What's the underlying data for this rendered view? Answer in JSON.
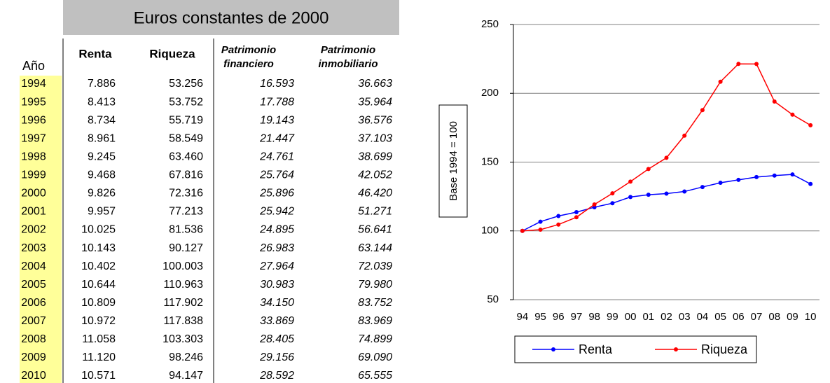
{
  "table": {
    "title": "Euros constantes de 2000",
    "columns": [
      "Año",
      "Renta",
      "Riqueza",
      [
        "Patrimonio",
        "financiero"
      ],
      [
        "Patrimonio",
        "inmobiliario"
      ]
    ],
    "rows": [
      [
        "1994",
        "7.886",
        "53.256",
        "16.593",
        "36.663"
      ],
      [
        "1995",
        "8.413",
        "53.752",
        "17.788",
        "35.964"
      ],
      [
        "1996",
        "8.734",
        "55.719",
        "19.143",
        "36.576"
      ],
      [
        "1997",
        "8.961",
        "58.549",
        "21.447",
        "37.103"
      ],
      [
        "1998",
        "9.245",
        "63.460",
        "24.761",
        "38.699"
      ],
      [
        "1999",
        "9.468",
        "67.816",
        "25.764",
        "42.052"
      ],
      [
        "2000",
        "9.826",
        "72.316",
        "25.896",
        "46.420"
      ],
      [
        "2001",
        "9.957",
        "77.213",
        "25.942",
        "51.271"
      ],
      [
        "2002",
        "10.025",
        "81.536",
        "24.895",
        "56.641"
      ],
      [
        "2003",
        "10.143",
        "90.127",
        "26.983",
        "63.144"
      ],
      [
        "2004",
        "10.402",
        "100.003",
        "27.964",
        "72.039"
      ],
      [
        "2005",
        "10.644",
        "110.963",
        "30.983",
        "79.980"
      ],
      [
        "2006",
        "10.809",
        "117.902",
        "34.150",
        "83.752"
      ],
      [
        "2007",
        "10.972",
        "117.838",
        "33.869",
        "83.969"
      ],
      [
        "2008",
        "11.058",
        "103.303",
        "28.405",
        "74.899"
      ],
      [
        "2009",
        "11.120",
        "98.246",
        "29.156",
        "69.090"
      ],
      [
        "2010",
        "10.571",
        "94.147",
        "28.592",
        "65.555"
      ]
    ]
  },
  "chart_data": {
    "type": "line",
    "ylabel": "Base 1994 = 100",
    "categories": [
      "94",
      "95",
      "96",
      "97",
      "98",
      "99",
      "00",
      "01",
      "02",
      "03",
      "04",
      "05",
      "06",
      "07",
      "08",
      "09",
      "10"
    ],
    "series": [
      {
        "name": "Renta",
        "color": "#0000ff",
        "values": [
          100,
          106.7,
          110.8,
          113.6,
          117.2,
          120.1,
          124.6,
          126.3,
          127.1,
          128.6,
          131.9,
          135.0,
          137.1,
          139.1,
          140.2,
          141.0,
          134.1
        ]
      },
      {
        "name": "Riqueza",
        "color": "#ff0000",
        "values": [
          100,
          100.9,
          104.6,
          109.9,
          119.2,
          127.3,
          135.8,
          145.0,
          153.1,
          169.2,
          187.8,
          208.4,
          221.4,
          221.3,
          194.0,
          184.5,
          176.8
        ]
      }
    ],
    "ylim": [
      50,
      250
    ],
    "yticks": [
      50,
      100,
      150,
      200,
      250
    ],
    "grid": true,
    "legend": "bottom"
  }
}
